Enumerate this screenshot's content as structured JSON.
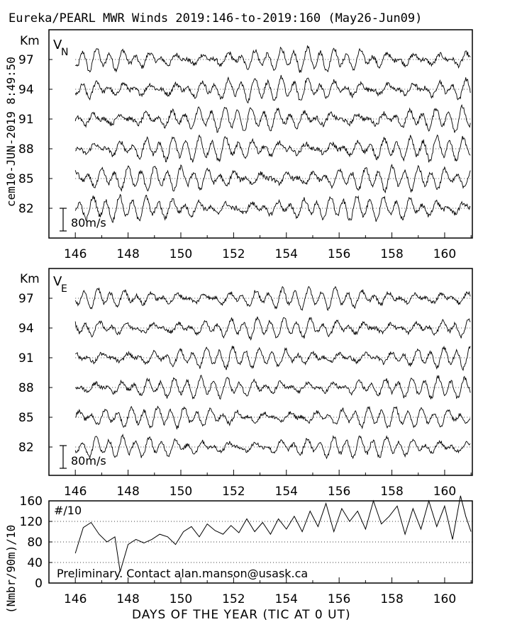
{
  "title": "Eureka/PEARL MWR Winds 2019:146-to-2019:160 (May26-Jun09)",
  "timestamp": "cem10-JUN-2019  8:49:50",
  "x_axis_label": "DAYS OF THE YEAR (TIC AT 0 UT)",
  "footer_note": "Preliminary. Contact alan.manson@usask.ca",
  "colors": {
    "line": "#000000",
    "background": "#ffffff"
  },
  "chart_data": [
    {
      "type": "line",
      "panel": "VN",
      "component_label": "V",
      "component_sub": "N",
      "ylabel": "Km",
      "x_ticks": [
        146,
        148,
        150,
        152,
        154,
        156,
        158,
        160
      ],
      "xlim": [
        145.0,
        161.05
      ],
      "heights_km": [
        97,
        94,
        91,
        88,
        85,
        82
      ],
      "scale_bar": "80m/s",
      "grid": "dotted baseline at each height",
      "series_x_range": [
        146.0,
        161.0
      ]
    },
    {
      "type": "line",
      "panel": "VE",
      "component_label": "V",
      "component_sub": "E",
      "ylabel": "Km",
      "x_ticks": [
        146,
        148,
        150,
        152,
        154,
        156,
        158,
        160
      ],
      "xlim": [
        145.0,
        161.05
      ],
      "heights_km": [
        97,
        94,
        91,
        88,
        85,
        82
      ],
      "scale_bar": "80m/s",
      "grid": "dotted baseline at each height",
      "series_x_range": [
        146.0,
        161.0
      ]
    },
    {
      "type": "line",
      "panel": "count",
      "ylabel": "(Nmbr/90m)/10",
      "legend": "#/10",
      "y_ticks": [
        0,
        40,
        80,
        120,
        160
      ],
      "ylim": [
        0,
        160
      ],
      "x_ticks": [
        146,
        148,
        150,
        152,
        154,
        156,
        158,
        160
      ],
      "xlim": [
        145.0,
        161.05
      ],
      "grid": "dotted at 40, 80, 120",
      "x": [
        146.0,
        146.3,
        146.6,
        146.9,
        147.2,
        147.5,
        147.7,
        148.0,
        148.3,
        148.6,
        148.9,
        149.2,
        149.5,
        149.8,
        150.1,
        150.4,
        150.7,
        151.0,
        151.3,
        151.6,
        151.9,
        152.2,
        152.5,
        152.8,
        153.1,
        153.4,
        153.7,
        154.0,
        154.3,
        154.6,
        154.9,
        155.2,
        155.5,
        155.8,
        156.1,
        156.4,
        156.7,
        157.0,
        157.3,
        157.6,
        157.9,
        158.2,
        158.5,
        158.8,
        159.1,
        159.4,
        159.7,
        160.0,
        160.3,
        160.6,
        160.8,
        161.0
      ],
      "y": [
        58,
        108,
        118,
        95,
        80,
        90,
        22,
        75,
        85,
        78,
        85,
        95,
        90,
        75,
        100,
        110,
        90,
        115,
        102,
        95,
        112,
        98,
        125,
        100,
        118,
        95,
        125,
        105,
        130,
        100,
        140,
        110,
        155,
        100,
        145,
        120,
        140,
        105,
        160,
        115,
        130,
        150,
        95,
        145,
        105,
        160,
        110,
        150,
        85,
        170,
        130,
        100
      ]
    }
  ]
}
